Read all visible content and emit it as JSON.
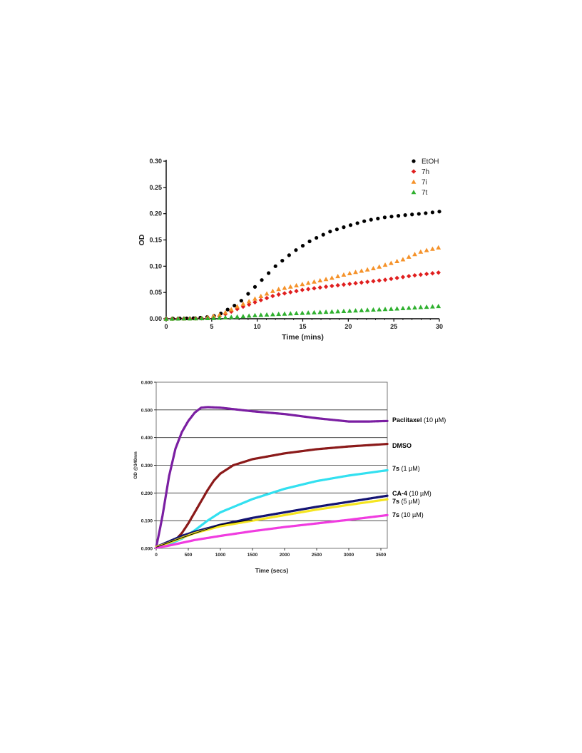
{
  "chart_data": [
    {
      "type": "scatter",
      "title": "",
      "xlabel": "Time (mins)",
      "ylabel": "OD",
      "xlim": [
        0,
        30
      ],
      "ylim": [
        0,
        0.3
      ],
      "xticks": [
        "0",
        "5",
        "10",
        "15",
        "20",
        "25",
        "30"
      ],
      "yticks": [
        "0.00",
        "0.05",
        "0.10",
        "0.15",
        "0.20",
        "0.25",
        "0.30"
      ],
      "grid": false,
      "legend": "top-right",
      "series": [
        {
          "name": "EtOH",
          "color": "#000000",
          "marker": "circle",
          "points": [
            [
              0,
              0
            ],
            [
              3,
              0.001
            ],
            [
              5,
              0.004
            ],
            [
              6,
              0.01
            ],
            [
              8,
              0.03
            ],
            [
              10,
              0.065
            ],
            [
              12,
              0.1
            ],
            [
              14,
              0.128
            ],
            [
              16,
              0.15
            ],
            [
              18,
              0.166
            ],
            [
              20,
              0.177
            ],
            [
              22,
              0.187
            ],
            [
              24,
              0.193
            ],
            [
              26,
              0.197
            ],
            [
              28,
              0.2
            ],
            [
              30,
              0.204
            ]
          ]
        },
        {
          "name": "7h",
          "color": "#e01e1e",
          "marker": "diamond",
          "points": [
            [
              0,
              0
            ],
            [
              4,
              0.001
            ],
            [
              6,
              0.005
            ],
            [
              8,
              0.02
            ],
            [
              10,
              0.033
            ],
            [
              12,
              0.045
            ],
            [
              15,
              0.055
            ],
            [
              18,
              0.062
            ],
            [
              21,
              0.068
            ],
            [
              24,
              0.074
            ],
            [
              27,
              0.082
            ],
            [
              30,
              0.088
            ]
          ]
        },
        {
          "name": "7i",
          "color": "#f5922a",
          "marker": "triangle",
          "points": [
            [
              0,
              0
            ],
            [
              4,
              0.001
            ],
            [
              6,
              0.008
            ],
            [
              8,
              0.025
            ],
            [
              10,
              0.04
            ],
            [
              12,
              0.055
            ],
            [
              15,
              0.066
            ],
            [
              18,
              0.077
            ],
            [
              20,
              0.086
            ],
            [
              23,
              0.097
            ],
            [
              26,
              0.113
            ],
            [
              28,
              0.128
            ],
            [
              30,
              0.136
            ]
          ]
        },
        {
          "name": "7t",
          "color": "#2fb02f",
          "marker": "triangle",
          "points": [
            [
              0,
              0
            ],
            [
              5,
              0.001
            ],
            [
              8,
              0.004
            ],
            [
              10,
              0.007
            ],
            [
              15,
              0.011
            ],
            [
              20,
              0.015
            ],
            [
              25,
              0.019
            ],
            [
              30,
              0.024
            ]
          ]
        }
      ]
    },
    {
      "type": "line",
      "title": "",
      "xlabel": "Time (secs)",
      "ylabel": "OD @340nm",
      "xlim": [
        0,
        3600
      ],
      "ylim": [
        0,
        0.6
      ],
      "xticks": [
        "0",
        "500",
        "1000",
        "1500",
        "2000",
        "2500",
        "3000",
        "3500"
      ],
      "yticks": [
        "0.000",
        "0.100",
        "0.200",
        "0.300",
        "0.400",
        "0.500",
        "0.600"
      ],
      "grid": true,
      "legend": "right-inline",
      "series": [
        {
          "name": "Paclitaxel",
          "label_suffix": "(10 µM)",
          "color": "#7b1fa2",
          "points": [
            [
              0,
              0.005
            ],
            [
              50,
              0.06
            ],
            [
              100,
              0.12
            ],
            [
              150,
              0.19
            ],
            [
              200,
              0.26
            ],
            [
              300,
              0.36
            ],
            [
              400,
              0.42
            ],
            [
              500,
              0.46
            ],
            [
              600,
              0.49
            ],
            [
              700,
              0.508
            ],
            [
              800,
              0.51
            ],
            [
              1000,
              0.508
            ],
            [
              1500,
              0.495
            ],
            [
              2000,
              0.485
            ],
            [
              2500,
              0.47
            ],
            [
              3000,
              0.458
            ],
            [
              3300,
              0.458
            ],
            [
              3600,
              0.46
            ]
          ]
        },
        {
          "name": "DMSO",
          "label_suffix": "",
          "color": "#8b1a1a",
          "points": [
            [
              0,
              0.005
            ],
            [
              100,
              0.008
            ],
            [
              200,
              0.015
            ],
            [
              300,
              0.03
            ],
            [
              400,
              0.055
            ],
            [
              500,
              0.09
            ],
            [
              600,
              0.13
            ],
            [
              700,
              0.17
            ],
            [
              800,
              0.21
            ],
            [
              900,
              0.245
            ],
            [
              1000,
              0.27
            ],
            [
              1200,
              0.3
            ],
            [
              1500,
              0.322
            ],
            [
              2000,
              0.343
            ],
            [
              2500,
              0.358
            ],
            [
              3000,
              0.368
            ],
            [
              3600,
              0.377
            ]
          ]
        },
        {
          "name": "7s",
          "label_suffix": "(1 µM)",
          "color": "#33e0f0",
          "points": [
            [
              0,
              0.005
            ],
            [
              200,
              0.015
            ],
            [
              400,
              0.035
            ],
            [
              600,
              0.065
            ],
            [
              800,
              0.1
            ],
            [
              1000,
              0.13
            ],
            [
              1500,
              0.178
            ],
            [
              2000,
              0.215
            ],
            [
              2500,
              0.243
            ],
            [
              3000,
              0.263
            ],
            [
              3600,
              0.282
            ]
          ]
        },
        {
          "name": "CA-4",
          "label_suffix": "(10 µM)",
          "color": "#141473",
          "points": [
            [
              0,
              0.005
            ],
            [
              100,
              0.015
            ],
            [
              200,
              0.025
            ],
            [
              400,
              0.045
            ],
            [
              600,
              0.06
            ],
            [
              1000,
              0.085
            ],
            [
              1500,
              0.11
            ],
            [
              2000,
              0.13
            ],
            [
              2500,
              0.15
            ],
            [
              3000,
              0.168
            ],
            [
              3600,
              0.19
            ]
          ]
        },
        {
          "name": "7s",
          "label_suffix": "(5 µM)",
          "color": "#f5e520",
          "points": [
            [
              0,
              0.005
            ],
            [
              100,
              0.012
            ],
            [
              200,
              0.02
            ],
            [
              400,
              0.038
            ],
            [
              600,
              0.055
            ],
            [
              1000,
              0.08
            ],
            [
              1500,
              0.1
            ],
            [
              2000,
              0.12
            ],
            [
              2500,
              0.14
            ],
            [
              3000,
              0.157
            ],
            [
              3600,
              0.177
            ]
          ]
        },
        {
          "name": "7s",
          "label_suffix": "(10 µM)",
          "color": "#f03ce0",
          "points": [
            [
              0,
              0.002
            ],
            [
              200,
              0.01
            ],
            [
              400,
              0.02
            ],
            [
              600,
              0.03
            ],
            [
              1000,
              0.045
            ],
            [
              1500,
              0.062
            ],
            [
              2000,
              0.077
            ],
            [
              2500,
              0.09
            ],
            [
              3000,
              0.103
            ],
            [
              3600,
              0.12
            ]
          ]
        }
      ]
    }
  ]
}
